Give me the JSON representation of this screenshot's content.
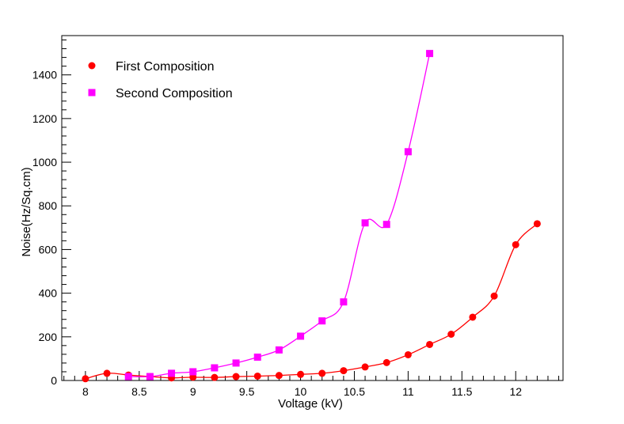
{
  "chart_data": {
    "type": "line",
    "title": "",
    "xlabel": "Voltage (kV)",
    "ylabel": "Noise(Hz/Sq.cm)",
    "xlim": [
      7.78,
      12.44
    ],
    "ylim": [
      0,
      1580
    ],
    "xticks": [
      8,
      8.5,
      9,
      9.5,
      10,
      10.5,
      11,
      11.5,
      12
    ],
    "xtick_labels": [
      "8",
      "8.5",
      "9",
      "9.5",
      "10",
      "10.5",
      "11",
      "11.5",
      "12"
    ],
    "yticks": [
      0,
      200,
      400,
      600,
      800,
      1000,
      1200,
      1400
    ],
    "ytick_labels": [
      "0",
      "200",
      "400",
      "600",
      "800",
      "1000",
      "1200",
      "1400"
    ],
    "grid": false,
    "legend_position": "top-left",
    "series": [
      {
        "name": "First Composition",
        "color": "#ff0000",
        "marker": "circle",
        "x": [
          8.0,
          8.2,
          8.4,
          8.6,
          8.8,
          9.0,
          9.2,
          9.4,
          9.6,
          9.8,
          10.0,
          10.2,
          10.4,
          10.6,
          10.8,
          11.0,
          11.2,
          11.4,
          11.6,
          11.8,
          12.0,
          12.2
        ],
        "y": [
          8,
          33,
          25,
          18,
          12,
          15,
          14,
          18,
          20,
          23,
          28,
          33,
          45,
          62,
          82,
          118,
          165,
          212,
          290,
          387,
          622,
          718
        ]
      },
      {
        "name": "Second Composition",
        "color": "#ff00ff",
        "marker": "square",
        "x": [
          8.4,
          8.6,
          8.8,
          9.0,
          9.2,
          9.4,
          9.6,
          9.8,
          10.0,
          10.2,
          10.4,
          10.6,
          10.8,
          11.0,
          11.2
        ],
        "y": [
          18,
          18,
          33,
          40,
          58,
          80,
          107,
          140,
          203,
          273,
          360,
          722,
          715,
          1048,
          1498
        ]
      }
    ]
  }
}
